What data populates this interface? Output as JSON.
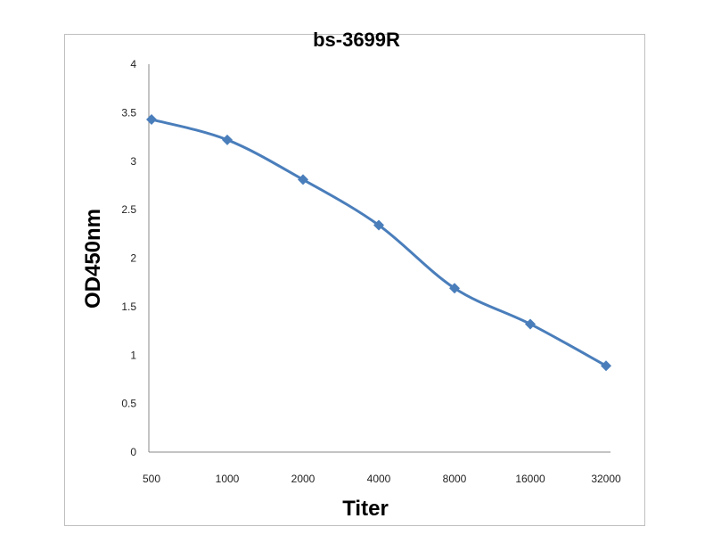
{
  "chart_data": {
    "type": "line",
    "title": "bs-3699R",
    "xlabel": "Titer",
    "ylabel": "OD450nm",
    "categories": [
      "500",
      "1000",
      "2000",
      "4000",
      "8000",
      "16000",
      "32000"
    ],
    "series": [
      {
        "name": "bs-3699R",
        "values": [
          3.43,
          3.22,
          2.81,
          2.34,
          1.69,
          1.32,
          0.89
        ],
        "color": "#4a7ebb"
      }
    ],
    "ylim": [
      0,
      4
    ],
    "yticks": [
      "0",
      "0.5",
      "1",
      "1.5",
      "2",
      "2.5",
      "3",
      "3.5",
      "4"
    ],
    "grid": false,
    "legend": "none",
    "smooth": true
  }
}
